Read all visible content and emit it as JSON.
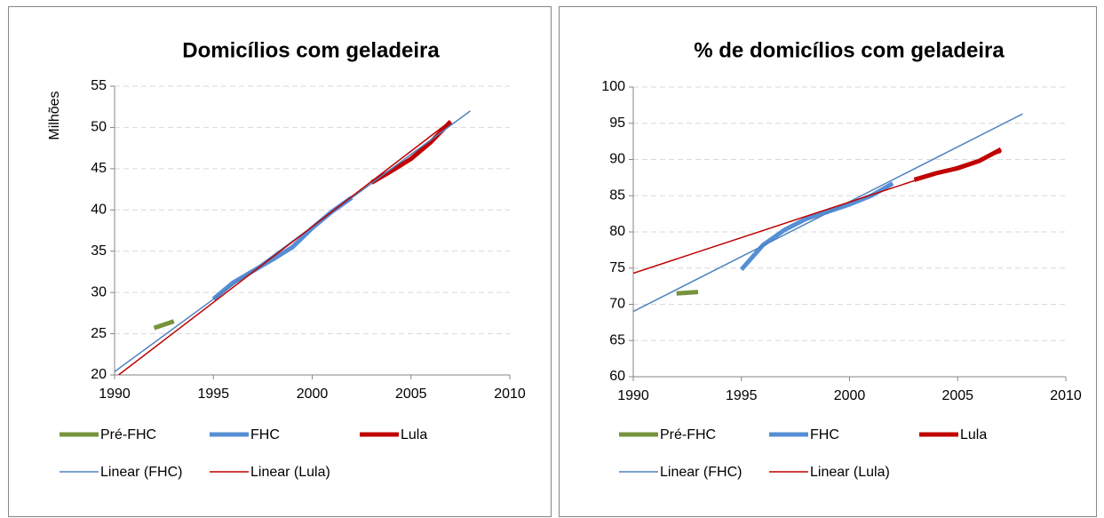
{
  "chart_data": [
    {
      "type": "line",
      "title": "Domicílios com geladeira",
      "y_label": "Milhões",
      "xlim": [
        1990,
        2010
      ],
      "xticks": [
        1990,
        1995,
        2000,
        2005,
        2010
      ],
      "ylim": [
        20,
        55
      ],
      "yticks": [
        20,
        25,
        30,
        35,
        40,
        45,
        50,
        55
      ],
      "grid": true,
      "legend": "bottom",
      "series": [
        {
          "name": "Pré-FHC",
          "color": "#77933c",
          "line_width": 5,
          "x": [
            1992,
            1993
          ],
          "values": [
            25.7,
            26.5
          ]
        },
        {
          "name": "FHC",
          "color": "#558ed5",
          "line_width": 5,
          "x": [
            1995,
            1996,
            1997,
            1998,
            1999,
            2000,
            2001,
            2002
          ],
          "values": [
            29.2,
            31.2,
            32.6,
            34.0,
            35.5,
            37.8,
            39.8,
            41.5
          ]
        },
        {
          "name": "Lula",
          "color": "#c00000",
          "line_width": 5,
          "x": [
            2003,
            2004,
            2005,
            2006,
            2007
          ],
          "values": [
            43.3,
            44.7,
            46.2,
            48.2,
            50.7
          ]
        },
        {
          "name": "Linear (FHC)",
          "color": "#4f81bd",
          "line_width": 1.5,
          "x": [
            1990,
            2008
          ],
          "values": [
            20.4,
            52.0
          ]
        },
        {
          "name": "Linear (Lula)",
          "color": "#c00000",
          "line_width": 1.5,
          "x": [
            1990.2,
            2007
          ],
          "values": [
            20,
            50.8
          ]
        }
      ]
    },
    {
      "type": "line",
      "title": "% de domicílios com geladeira",
      "xlim": [
        1990,
        2010
      ],
      "xticks": [
        1990,
        1995,
        2000,
        2005,
        2010
      ],
      "ylim": [
        60,
        100
      ],
      "yticks": [
        60,
        65,
        70,
        75,
        80,
        85,
        90,
        95,
        100
      ],
      "grid": true,
      "legend": "bottom",
      "series": [
        {
          "name": "Pré-FHC",
          "color": "#77933c",
          "line_width": 5,
          "x": [
            1992,
            1993
          ],
          "values": [
            71.5,
            71.7
          ]
        },
        {
          "name": "FHC",
          "color": "#558ed5",
          "line_width": 5,
          "x": [
            1995,
            1996,
            1997,
            1998,
            1999,
            2000,
            2001,
            2002
          ],
          "values": [
            74.8,
            78.2,
            80.3,
            81.8,
            82.8,
            83.8,
            85.0,
            86.7
          ]
        },
        {
          "name": "Lula",
          "color": "#c00000",
          "line_width": 5,
          "x": [
            2003,
            2004,
            2005,
            2006,
            2007
          ],
          "values": [
            87.2,
            88.1,
            88.8,
            89.8,
            91.4
          ]
        },
        {
          "name": "Linear (FHC)",
          "color": "#4f81bd",
          "line_width": 1.5,
          "x": [
            1990,
            2008
          ],
          "values": [
            69.0,
            96.3
          ]
        },
        {
          "name": "Linear (Lula)",
          "color": "#c00000",
          "line_width": 1.5,
          "x": [
            1990,
            2007
          ],
          "values": [
            74.3,
            91.0
          ]
        }
      ]
    }
  ]
}
